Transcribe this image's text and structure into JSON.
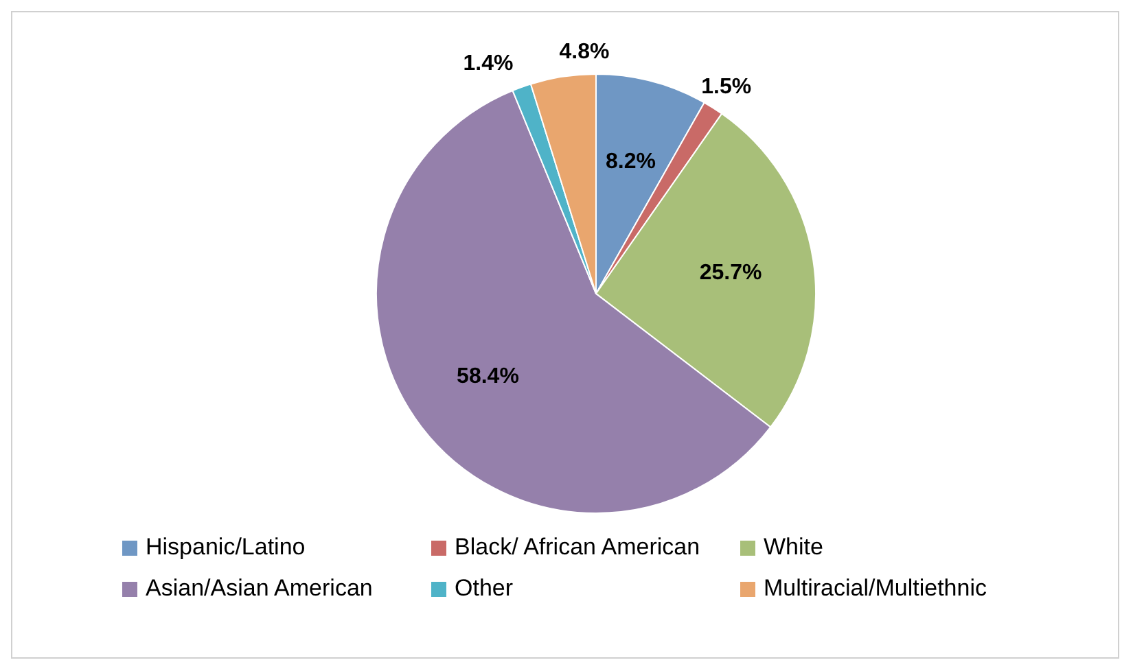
{
  "chart_data": {
    "type": "pie",
    "categories": [
      "Hispanic/Latino",
      "Black/ African American",
      "White",
      "Asian/Asian American",
      "Other",
      "Multiracial/Multiethnic"
    ],
    "values": [
      8.2,
      1.5,
      25.7,
      58.4,
      1.4,
      4.8
    ],
    "value_labels": [
      "8.2%",
      "1.5%",
      "25.7%",
      "58.4%",
      "1.4%",
      "4.8%"
    ],
    "colors": [
      "#6f97c4",
      "#c96a67",
      "#a8bf79",
      "#9580ab",
      "#4fb3c8",
      "#e9a66e"
    ],
    "legend": "bottom"
  }
}
